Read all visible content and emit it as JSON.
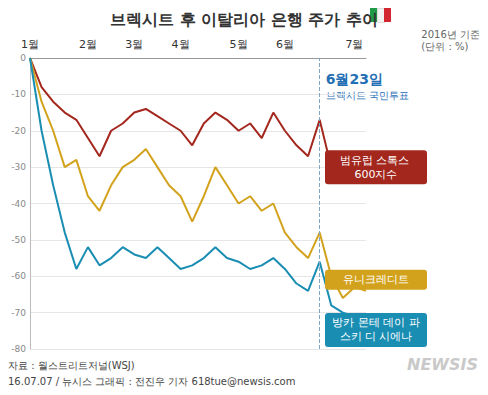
{
  "chart_data": {
    "type": "line",
    "title": "브렉시트 후 이탈리아 은행 주가 추이",
    "notes": [
      "2016년 기준",
      "(단위 : %)"
    ],
    "categories": [
      "1월",
      null,
      null,
      null,
      null,
      "2월",
      null,
      null,
      null,
      "3월",
      null,
      null,
      null,
      "4월",
      null,
      null,
      null,
      null,
      "5월",
      null,
      null,
      null,
      "6월",
      null,
      null,
      null,
      null,
      null,
      "7월",
      null
    ],
    "series": [
      {
        "name": "범유럽 스톡스 600지수",
        "color": "#a3271d",
        "values": [
          0,
          -8,
          -12,
          -15,
          -17,
          -22,
          -27,
          -20,
          -18,
          -15,
          -14,
          -16,
          -18,
          -20,
          -24,
          -18,
          -15,
          -17,
          -20,
          -18,
          -22,
          -15,
          -20,
          -24,
          -27,
          -17,
          -30,
          -34,
          -31,
          -30
        ]
      },
      {
        "name": "유니크레디트",
        "color": "#d3a21c",
        "values": [
          0,
          -12,
          -20,
          -30,
          -28,
          -38,
          -42,
          -35,
          -30,
          -28,
          -25,
          -30,
          -35,
          -38,
          -45,
          -38,
          -30,
          -35,
          -40,
          -38,
          -42,
          -40,
          -48,
          -52,
          -55,
          -48,
          -60,
          -66,
          -63,
          -64
        ]
      },
      {
        "name": "방카 몬테 데이 파스키 디 시에나",
        "color": "#1a8db3",
        "values": [
          0,
          -20,
          -35,
          -48,
          -58,
          -52,
          -57,
          -55,
          -52,
          -54,
          -55,
          -52,
          -55,
          -58,
          -57,
          -55,
          -52,
          -55,
          -56,
          -58,
          -57,
          -55,
          -58,
          -62,
          -64,
          -56,
          -68,
          -70,
          -71,
          -72
        ]
      }
    ],
    "ylim": [
      -80,
      0
    ],
    "yticks": [
      -80,
      -70,
      -60,
      -50,
      -40,
      -30,
      -20,
      -10,
      0
    ],
    "grid": true,
    "annotation": {
      "index": 25,
      "label": "6월23일",
      "text": "브렉시트 국민투표"
    },
    "source": "자료 : 월스트리트저널(WSJ)",
    "credit": "16.07.07 / 뉴시스 그래픽 : 전진우 기자 618tue@newsis.com",
    "watermark": "NEWSIS"
  }
}
